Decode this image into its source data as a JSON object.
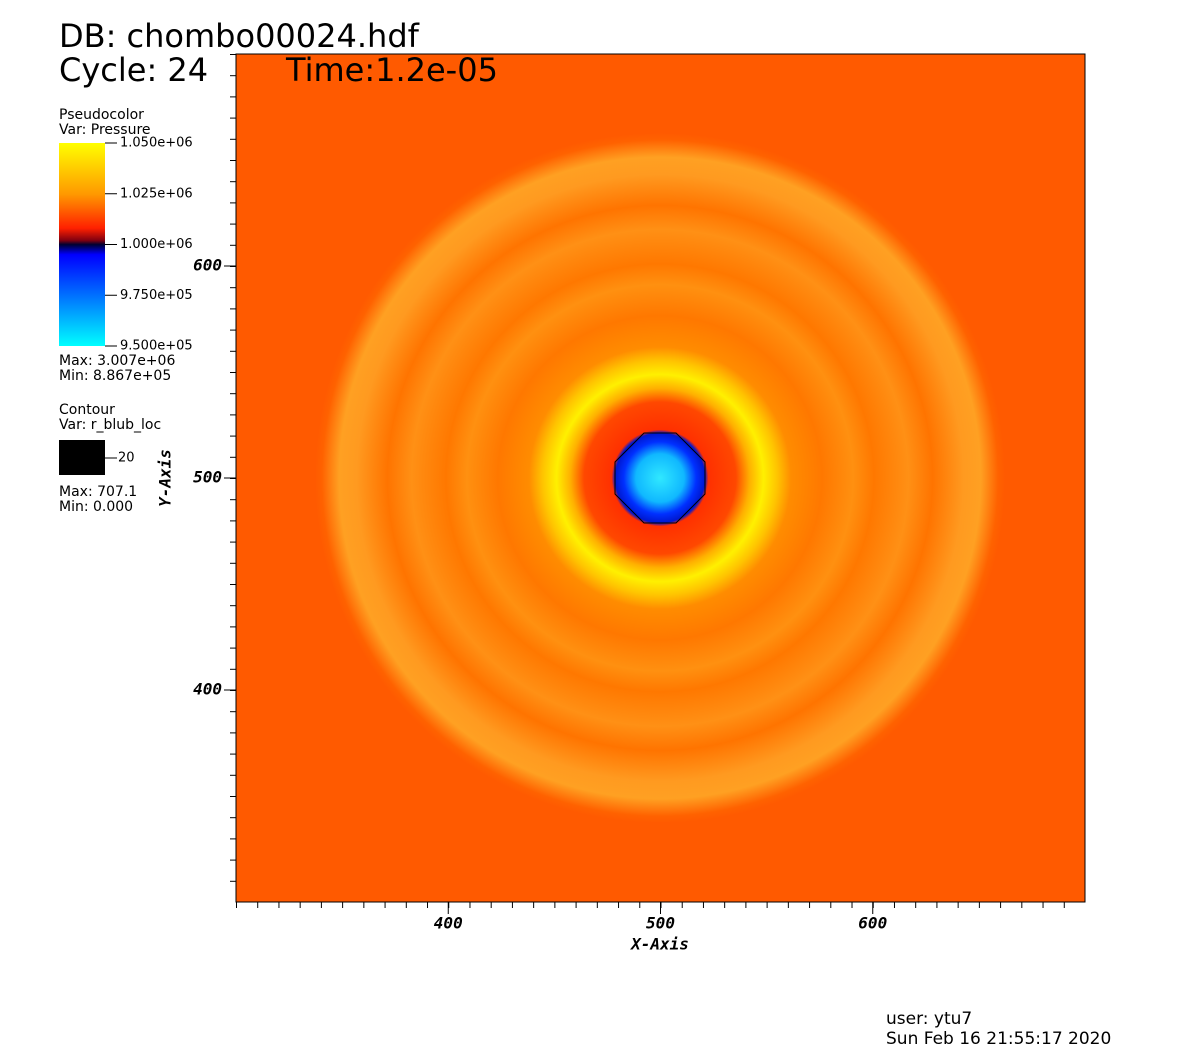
{
  "chart_data": {
    "type": "pseudocolor",
    "database": "DB: chombo00024.hdf",
    "cycle": "Cycle: 24",
    "time": "Time:1.2e-05",
    "x_label": "X-Axis",
    "y_label": "Y-Axis",
    "xlim": [
      300,
      700
    ],
    "ylim": [
      300,
      700
    ],
    "xticks": [
      400,
      500,
      600
    ],
    "yticks": [
      400,
      500,
      600
    ],
    "pseudocolor_legend": {
      "title": "Pseudocolor",
      "variable": "Var: Pressure",
      "range": [
        950000,
        1050000
      ],
      "ticks": [
        {
          "value": 1050000,
          "label": "1.050e+06"
        },
        {
          "value": 1025000,
          "label": "1.025e+06"
        },
        {
          "value": 1000000,
          "label": "1.000e+06"
        },
        {
          "value": 975000,
          "label": "9.750e+05"
        },
        {
          "value": 950000,
          "label": "9.500e+05"
        }
      ],
      "max": "Max: 3.007e+06",
      "min": "Min: 8.867e+05"
    },
    "contour_legend": {
      "title": "Contour",
      "variable": "Var: r_blub_loc",
      "level": 20,
      "color": "#000000",
      "max": "Max: 707.1",
      "min": "Min: 0.000"
    },
    "user": "user: ytu7",
    "date": "Sun Feb 16 21:55:17 2020"
  }
}
